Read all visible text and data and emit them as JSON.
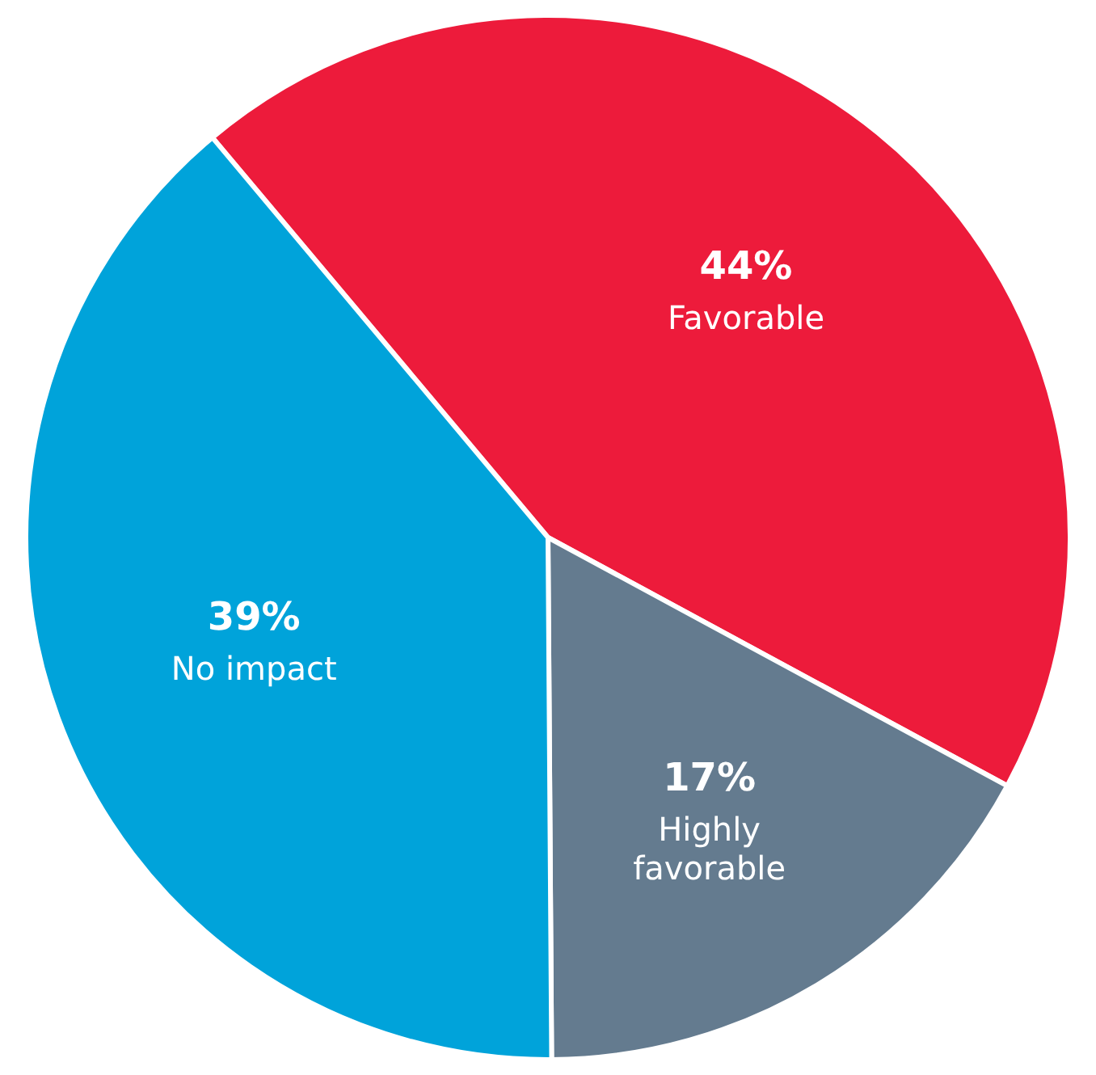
{
  "chart_data": {
    "type": "pie",
    "categories": [
      "Favorable",
      "Highly favorable",
      "No impact"
    ],
    "values": [
      44,
      17,
      39
    ],
    "colors": [
      "#ed1b3b",
      "#647b8f",
      "#00a3da"
    ],
    "value_labels": [
      "44%",
      "17%",
      "39%"
    ],
    "legend": false
  }
}
